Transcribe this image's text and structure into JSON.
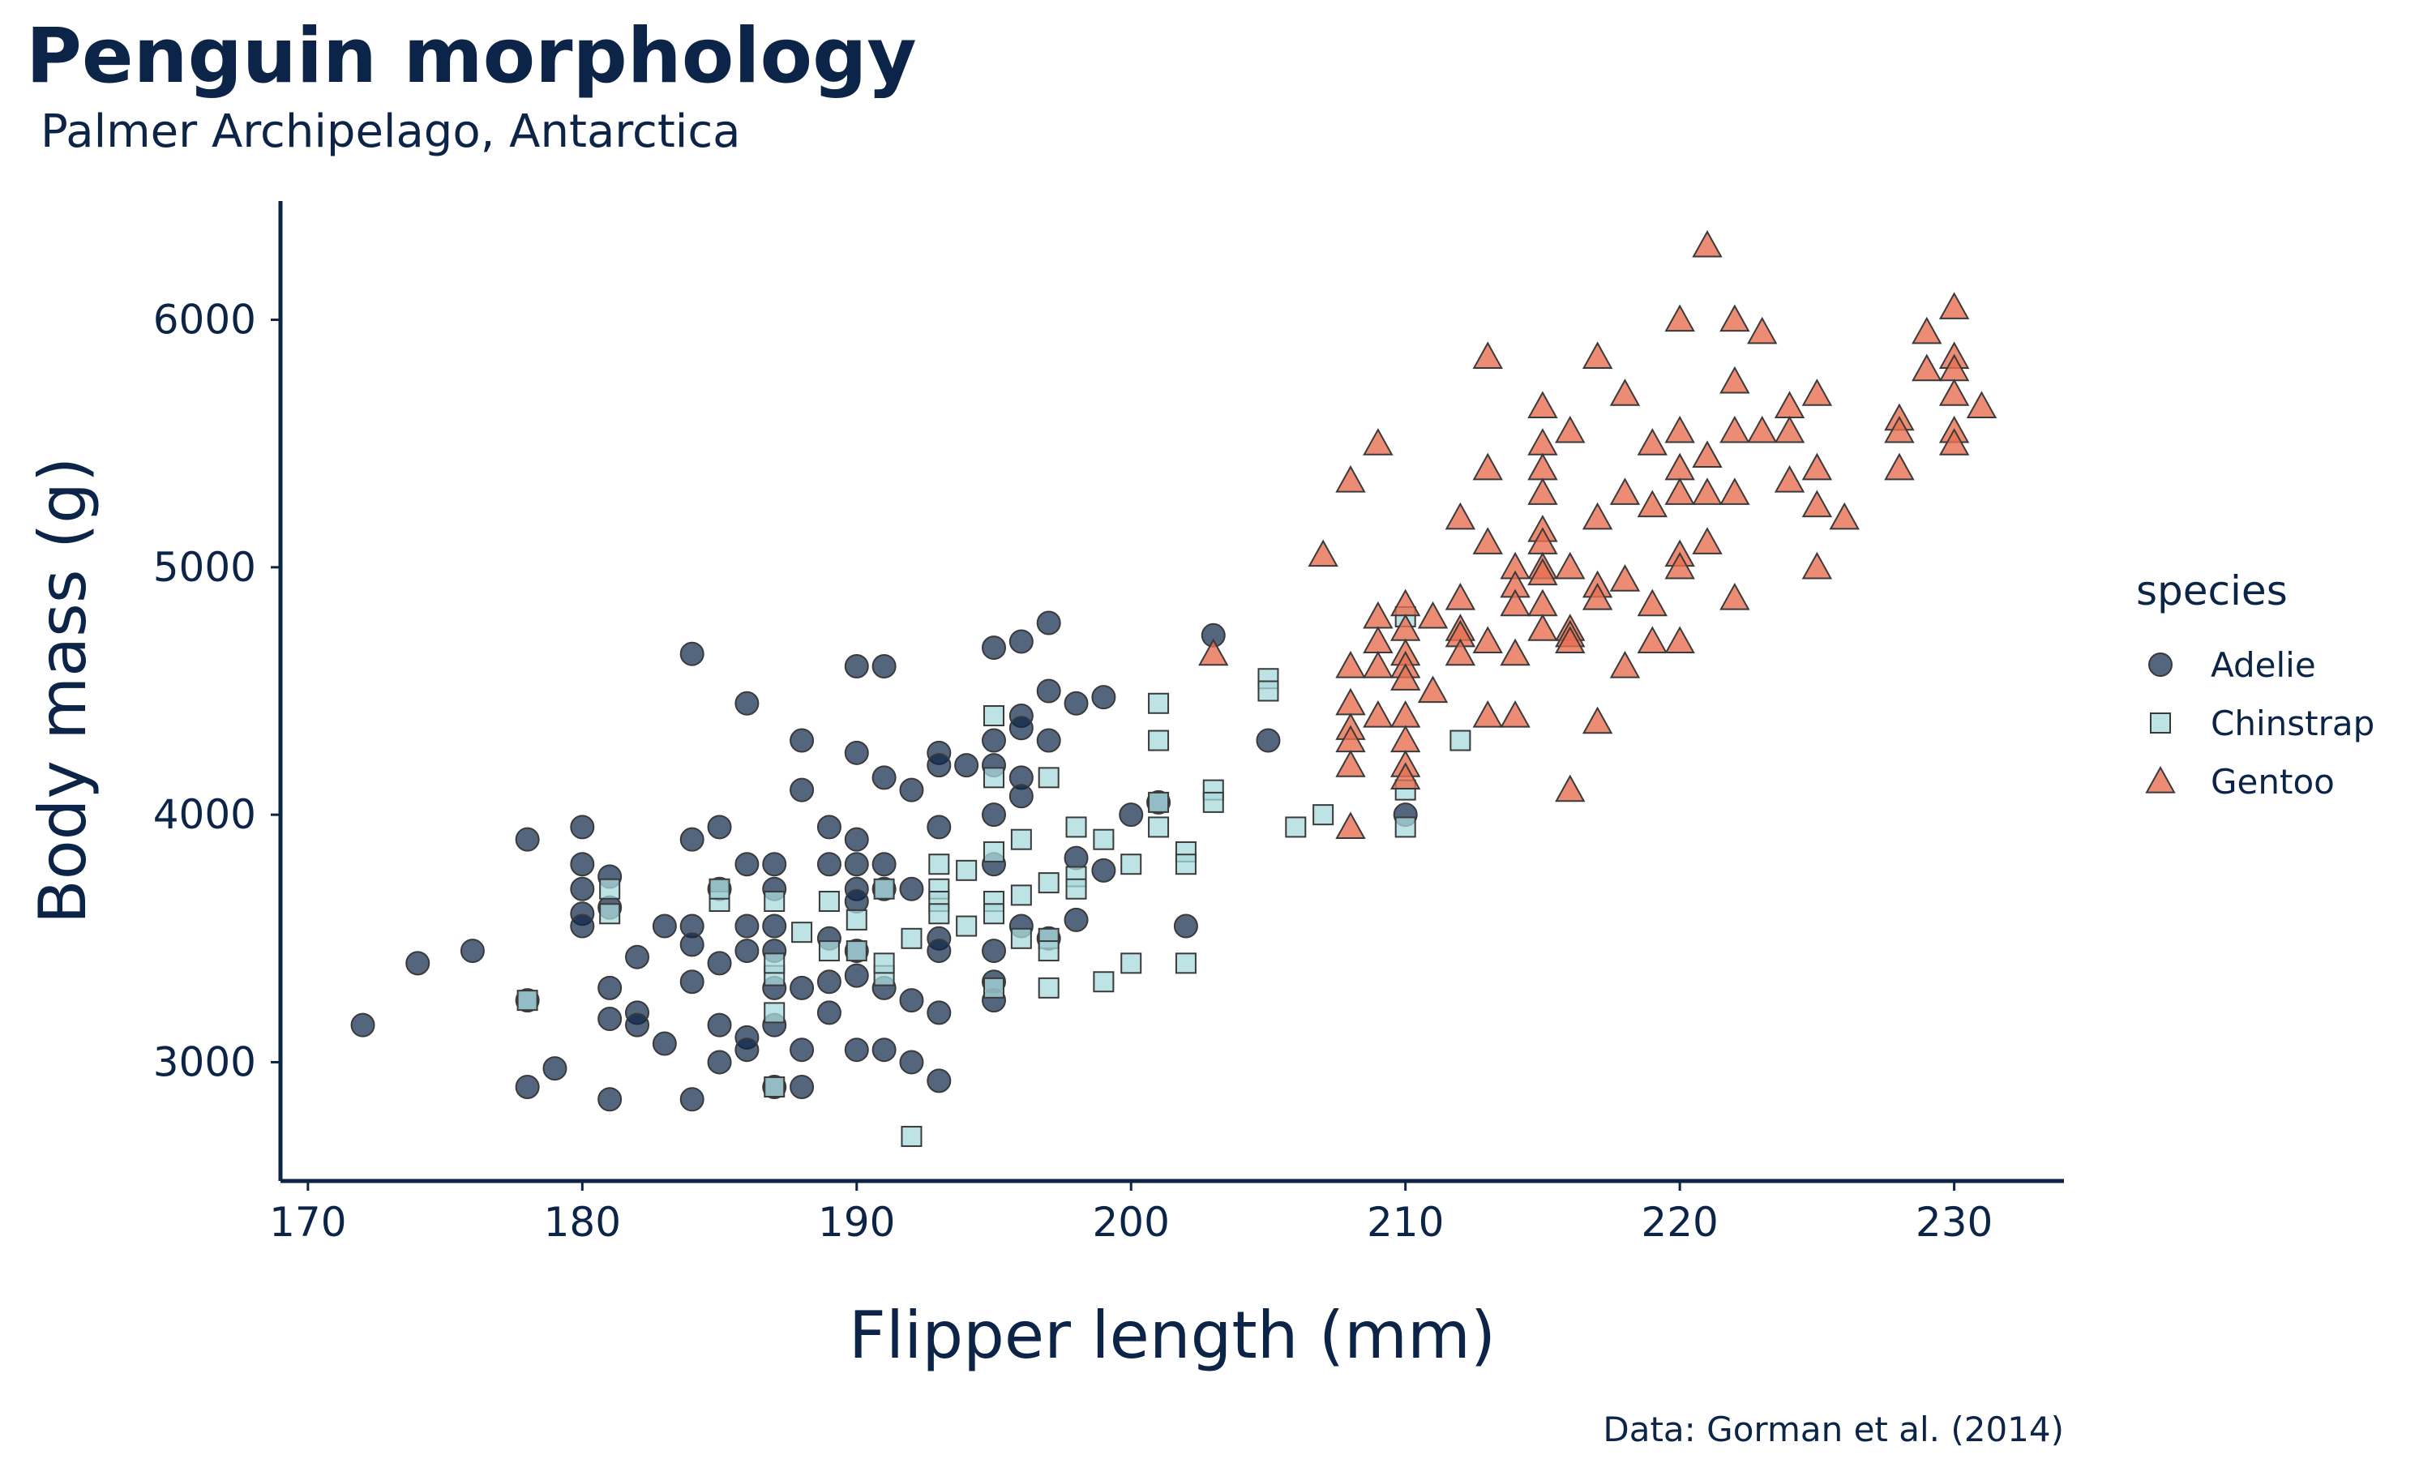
{
  "chart_data": {
    "type": "scatter",
    "title": "Penguin morphology",
    "subtitle": "Palmer Archipelago, Antarctica",
    "xlabel": "Flipper length (mm)",
    "ylabel": "Body mass (g)",
    "xlim": [
      169,
      234
    ],
    "ylim": [
      2520,
      6480
    ],
    "xticks": [
      170,
      180,
      190,
      200,
      210,
      220,
      230
    ],
    "yticks": [
      3000,
      4000,
      5000,
      6000
    ],
    "grid": false,
    "legend": {
      "title": "species",
      "position": "right"
    },
    "caption": "Data: Gorman et al. (2014)",
    "series": [
      {
        "name": "Adelie",
        "marker": "circle",
        "color": "#0b2447",
        "points": [
          [
            172,
            3150
          ],
          [
            174,
            3400
          ],
          [
            176,
            3450
          ],
          [
            178,
            3900
          ],
          [
            178,
            3250
          ],
          [
            178,
            2900
          ],
          [
            179,
            2975
          ],
          [
            180,
            3950
          ],
          [
            180,
            3800
          ],
          [
            180,
            3700
          ],
          [
            180,
            3600
          ],
          [
            180,
            3550
          ],
          [
            181,
            3750
          ],
          [
            181,
            3625
          ],
          [
            181,
            3175
          ],
          [
            181,
            3300
          ],
          [
            181,
            2850
          ],
          [
            182,
            3425
          ],
          [
            182,
            3200
          ],
          [
            182,
            3150
          ],
          [
            183,
            3550
          ],
          [
            183,
            3075
          ],
          [
            184,
            4650
          ],
          [
            184,
            3900
          ],
          [
            184,
            3550
          ],
          [
            184,
            3475
          ],
          [
            184,
            3325
          ],
          [
            184,
            2850
          ],
          [
            185,
            3950
          ],
          [
            185,
            3700
          ],
          [
            185,
            3400
          ],
          [
            185,
            3150
          ],
          [
            185,
            3000
          ],
          [
            186,
            4450
          ],
          [
            186,
            3800
          ],
          [
            186,
            3550
          ],
          [
            186,
            3450
          ],
          [
            186,
            3100
          ],
          [
            186,
            3050
          ],
          [
            187,
            3800
          ],
          [
            187,
            3700
          ],
          [
            187,
            3550
          ],
          [
            187,
            3450
          ],
          [
            187,
            3300
          ],
          [
            187,
            3150
          ],
          [
            187,
            2900
          ],
          [
            188,
            4300
          ],
          [
            188,
            4100
          ],
          [
            188,
            3300
          ],
          [
            188,
            3050
          ],
          [
            188,
            2900
          ],
          [
            189,
            3800
          ],
          [
            189,
            3950
          ],
          [
            189,
            3500
          ],
          [
            189,
            3325
          ],
          [
            189,
            3200
          ],
          [
            190,
            4600
          ],
          [
            190,
            4250
          ],
          [
            190,
            3900
          ],
          [
            190,
            3800
          ],
          [
            190,
            3700
          ],
          [
            190,
            3650
          ],
          [
            190,
            3450
          ],
          [
            190,
            3350
          ],
          [
            190,
            3050
          ],
          [
            191,
            4600
          ],
          [
            191,
            4150
          ],
          [
            191,
            3800
          ],
          [
            191,
            3700
          ],
          [
            191,
            3300
          ],
          [
            191,
            3050
          ],
          [
            192,
            4100
          ],
          [
            192,
            3700
          ],
          [
            192,
            3250
          ],
          [
            192,
            3000
          ],
          [
            193,
            4250
          ],
          [
            193,
            4200
          ],
          [
            193,
            3950
          ],
          [
            193,
            3500
          ],
          [
            193,
            3450
          ],
          [
            193,
            3200
          ],
          [
            193,
            2925
          ],
          [
            194,
            4200
          ],
          [
            195,
            4675
          ],
          [
            195,
            4300
          ],
          [
            195,
            4200
          ],
          [
            195,
            4000
          ],
          [
            195,
            3800
          ],
          [
            195,
            3450
          ],
          [
            195,
            3250
          ],
          [
            195,
            3325
          ],
          [
            196,
            4700
          ],
          [
            196,
            4400
          ],
          [
            196,
            4350
          ],
          [
            196,
            4150
          ],
          [
            196,
            4075
          ],
          [
            196,
            3550
          ],
          [
            197,
            4775
          ],
          [
            197,
            4500
          ],
          [
            197,
            4300
          ],
          [
            197,
            3500
          ],
          [
            198,
            4450
          ],
          [
            198,
            3825
          ],
          [
            198,
            3575
          ],
          [
            199,
            4475
          ],
          [
            199,
            3775
          ],
          [
            200,
            4000
          ],
          [
            201,
            4050
          ],
          [
            202,
            3550
          ],
          [
            203,
            4725
          ],
          [
            205,
            4300
          ],
          [
            210,
            4000
          ]
        ]
      },
      {
        "name": "Chinstrap",
        "marker": "square",
        "color": "#a8dadc",
        "points": [
          [
            178,
            3250
          ],
          [
            181,
            3700
          ],
          [
            181,
            3600
          ],
          [
            185,
            3650
          ],
          [
            185,
            3700
          ],
          [
            187,
            3650
          ],
          [
            187,
            3350
          ],
          [
            187,
            3400
          ],
          [
            187,
            3200
          ],
          [
            187,
            2900
          ],
          [
            188,
            3525
          ],
          [
            189,
            3650
          ],
          [
            189,
            3450
          ],
          [
            190,
            3575
          ],
          [
            190,
            3450
          ],
          [
            191,
            3350
          ],
          [
            191,
            3700
          ],
          [
            191,
            3400
          ],
          [
            192,
            3500
          ],
          [
            192,
            2700
          ],
          [
            193,
            3800
          ],
          [
            193,
            3700
          ],
          [
            193,
            3650
          ],
          [
            193,
            3600
          ],
          [
            194,
            3775
          ],
          [
            194,
            3550
          ],
          [
            195,
            4400
          ],
          [
            195,
            4150
          ],
          [
            195,
            3850
          ],
          [
            195,
            3650
          ],
          [
            195,
            3600
          ],
          [
            195,
            3300
          ],
          [
            196,
            3900
          ],
          [
            196,
            3675
          ],
          [
            196,
            3500
          ],
          [
            197,
            4150
          ],
          [
            197,
            3725
          ],
          [
            197,
            3500
          ],
          [
            197,
            3450
          ],
          [
            197,
            3300
          ],
          [
            198,
            3950
          ],
          [
            198,
            3750
          ],
          [
            198,
            3700
          ],
          [
            199,
            3900
          ],
          [
            199,
            3325
          ],
          [
            200,
            3800
          ],
          [
            200,
            3400
          ],
          [
            201,
            4450
          ],
          [
            201,
            4300
          ],
          [
            201,
            4050
          ],
          [
            201,
            3950
          ],
          [
            202,
            3850
          ],
          [
            202,
            3800
          ],
          [
            202,
            3400
          ],
          [
            203,
            4100
          ],
          [
            203,
            4050
          ],
          [
            205,
            4550
          ],
          [
            205,
            4500
          ],
          [
            206,
            3950
          ],
          [
            207,
            4000
          ],
          [
            210,
            4800
          ],
          [
            210,
            4100
          ],
          [
            210,
            3950
          ],
          [
            212,
            4300
          ]
        ]
      },
      {
        "name": "Gentoo",
        "marker": "triangle",
        "color": "#e76f51",
        "points": [
          [
            203,
            4650
          ],
          [
            207,
            5050
          ],
          [
            208,
            5350
          ],
          [
            208,
            4600
          ],
          [
            208,
            4450
          ],
          [
            208,
            4350
          ],
          [
            208,
            4300
          ],
          [
            208,
            4200
          ],
          [
            208,
            3950
          ],
          [
            209,
            5500
          ],
          [
            209,
            4800
          ],
          [
            209,
            4700
          ],
          [
            209,
            4600
          ],
          [
            209,
            4400
          ],
          [
            210,
            4850
          ],
          [
            210,
            4750
          ],
          [
            210,
            4650
          ],
          [
            210,
            4600
          ],
          [
            210,
            4550
          ],
          [
            210,
            4400
          ],
          [
            210,
            4300
          ],
          [
            210,
            4200
          ],
          [
            210,
            4150
          ],
          [
            211,
            4800
          ],
          [
            211,
            4500
          ],
          [
            212,
            5200
          ],
          [
            212,
            4875
          ],
          [
            212,
            4750
          ],
          [
            212,
            4725
          ],
          [
            212,
            4650
          ],
          [
            213,
            5850
          ],
          [
            213,
            5400
          ],
          [
            213,
            5100
          ],
          [
            213,
            4700
          ],
          [
            213,
            4400
          ],
          [
            214,
            5000
          ],
          [
            214,
            4925
          ],
          [
            214,
            4850
          ],
          [
            214,
            4650
          ],
          [
            214,
            4400
          ],
          [
            215,
            5650
          ],
          [
            215,
            5500
          ],
          [
            215,
            5400
          ],
          [
            215,
            5300
          ],
          [
            215,
            5150
          ],
          [
            215,
            5100
          ],
          [
            215,
            5000
          ],
          [
            215,
            4975
          ],
          [
            215,
            4850
          ],
          [
            215,
            4750
          ],
          [
            216,
            5550
          ],
          [
            216,
            5000
          ],
          [
            216,
            4750
          ],
          [
            216,
            4725
          ],
          [
            216,
            4700
          ],
          [
            216,
            4100
          ],
          [
            217,
            5850
          ],
          [
            217,
            5200
          ],
          [
            217,
            4925
          ],
          [
            217,
            4875
          ],
          [
            217,
            4375
          ],
          [
            218,
            5700
          ],
          [
            218,
            5300
          ],
          [
            218,
            4950
          ],
          [
            218,
            4600
          ],
          [
            219,
            5500
          ],
          [
            219,
            5250
          ],
          [
            219,
            4850
          ],
          [
            219,
            4700
          ],
          [
            220,
            6000
          ],
          [
            220,
            5550
          ],
          [
            220,
            5400
          ],
          [
            220,
            5300
          ],
          [
            220,
            5050
          ],
          [
            220,
            5000
          ],
          [
            220,
            4700
          ],
          [
            221,
            6300
          ],
          [
            221,
            5450
          ],
          [
            221,
            5300
          ],
          [
            221,
            5100
          ],
          [
            222,
            6000
          ],
          [
            222,
            5750
          ],
          [
            222,
            5550
          ],
          [
            222,
            5300
          ],
          [
            222,
            4875
          ],
          [
            223,
            5950
          ],
          [
            223,
            5550
          ],
          [
            224,
            5650
          ],
          [
            224,
            5550
          ],
          [
            224,
            5350
          ],
          [
            225,
            5700
          ],
          [
            225,
            5400
          ],
          [
            225,
            5250
          ],
          [
            225,
            5000
          ],
          [
            226,
            5200
          ],
          [
            228,
            5600
          ],
          [
            228,
            5550
          ],
          [
            228,
            5400
          ],
          [
            229,
            5950
          ],
          [
            229,
            5800
          ],
          [
            230,
            6050
          ],
          [
            230,
            5850
          ],
          [
            230,
            5800
          ],
          [
            230,
            5700
          ],
          [
            230,
            5550
          ],
          [
            230,
            5500
          ],
          [
            231,
            5650
          ]
        ]
      }
    ]
  }
}
